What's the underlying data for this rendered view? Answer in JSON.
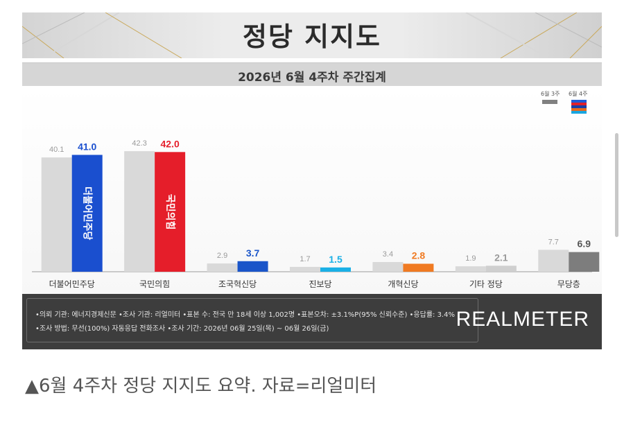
{
  "header": {
    "title": "정당 지지도",
    "subtitle": "2026년 6월 4주차 주간집계"
  },
  "legend": {
    "previous": "6월 3주",
    "current": "6월 4주",
    "previous_color": "#808080",
    "current_colors": [
      "#1f5bd6",
      "#e0202b",
      "#1a3fa8",
      "#e86a1e",
      "#1aa6e0"
    ]
  },
  "chart_data": {
    "type": "bar",
    "title": "정당 지지도",
    "subtitle": "2026년 6월 4주차 주간집계",
    "categories": [
      "더불어민주당",
      "국민의힘",
      "조국혁신당",
      "진보당",
      "개혁신당",
      "기타 정당",
      "무당층"
    ],
    "series": [
      {
        "name": "6월 3주",
        "values": [
          40.1,
          42.3,
          2.9,
          1.7,
          3.4,
          1.9,
          7.7
        ]
      },
      {
        "name": "6월 4주",
        "values": [
          41.0,
          42.0,
          3.7,
          1.5,
          2.8,
          2.1,
          6.9
        ]
      }
    ],
    "previous_color": "#d9d9d9",
    "current_colors": [
      "#1a4fcf",
      "#e51e2a",
      "#1a55c9",
      "#1ab0e6",
      "#f07a22",
      "#cfcfcf",
      "#7d7d7d"
    ],
    "current_label_colors": [
      "#1a4fcf",
      "#e51e2a",
      "#1a55c9",
      "#1ab0e6",
      "#f07a22",
      "#9a9a9a",
      "#555555"
    ],
    "bar_inner_labels": [
      "더불어민주당",
      "국민의힘"
    ],
    "ylim": [
      0,
      45
    ],
    "grid": false,
    "legend_position": "top-right"
  },
  "footer": {
    "line1": "•의뢰 기관: 에너지경제신문  •조사 기관: 리얼미터 •표본 수: 전국 만 18세 이상 1,002명 •표본오차: ±3.1%P(95% 신뢰수준) •응답률: 3.4%",
    "line2": "•조사 방법: 무선(100%) 자동응답 전화조사 •조사 기간: 2026년 06월 25일(목) ~ 06월 26일(금)",
    "logo": "REALMETER"
  },
  "caption": "▲6월 4주차 정당 지지도 요약. 자료=리얼미터"
}
